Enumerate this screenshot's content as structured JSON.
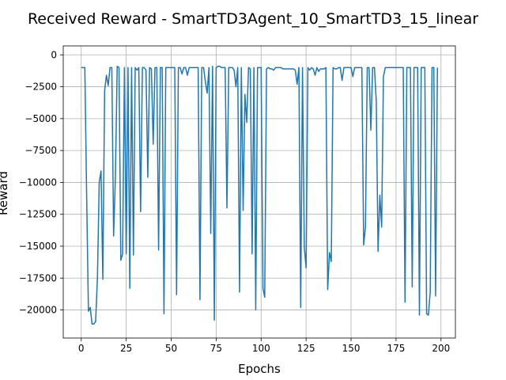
{
  "chart_data": {
    "type": "line",
    "title": "Received Reward - SmartTD3Agent_10_SmartTD3_15_linear",
    "xlabel": "Epochs",
    "ylabel": "Reward",
    "xlim": [
      -10,
      208
    ],
    "ylim": [
      -22200,
      700
    ],
    "grid": true,
    "legend": "none",
    "series_color": "#1f77b4",
    "x_ticks": [
      0,
      25,
      50,
      75,
      100,
      125,
      150,
      175,
      200
    ],
    "x_tick_labels": [
      "0",
      "25",
      "50",
      "75",
      "100",
      "125",
      "150",
      "175",
      "200"
    ],
    "y_ticks": [
      0,
      -2500,
      -5000,
      -7500,
      -10000,
      -12500,
      -15000,
      -17500,
      -20000
    ],
    "y_tick_labels": [
      "0",
      "−2500",
      "−5000",
      "−7500",
      "−10000",
      "−12500",
      "−15000",
      "−17500",
      "−20000"
    ],
    "series": [
      {
        "x": [
          0,
          1,
          2,
          3,
          4,
          5,
          6,
          7,
          8,
          9,
          10,
          11,
          12,
          13,
          14,
          15,
          16,
          17,
          18,
          19,
          20,
          21,
          22,
          23,
          24,
          25,
          26,
          27,
          28,
          29,
          30,
          31,
          32,
          33,
          34,
          35,
          36,
          37,
          38,
          39,
          40,
          41,
          42,
          43,
          44,
          45,
          46,
          47,
          48,
          49,
          50,
          51,
          52,
          53,
          54,
          55,
          56,
          57,
          58,
          59,
          60,
          61,
          62,
          63,
          64,
          65,
          66,
          67,
          68,
          69,
          70,
          71,
          72,
          73,
          74,
          75,
          76,
          77,
          78,
          79,
          80,
          81,
          82,
          83,
          84,
          85,
          86,
          87,
          88,
          89,
          90,
          91,
          92,
          93,
          94,
          95,
          96,
          97,
          98,
          99,
          100,
          101,
          102,
          103,
          104,
          105,
          106,
          107,
          108,
          109,
          110,
          111,
          112,
          113,
          114,
          115,
          116,
          117,
          118,
          119,
          120,
          121,
          122,
          123,
          124,
          125,
          126,
          127,
          128,
          129,
          130,
          131,
          132,
          133,
          134,
          135,
          136,
          137,
          138,
          139,
          140,
          141,
          142,
          143,
          144,
          145,
          146,
          147,
          148,
          149,
          150,
          151,
          152,
          153,
          154,
          155,
          156,
          157,
          158,
          159,
          160,
          161,
          162,
          163,
          164,
          165,
          166,
          167,
          168,
          169,
          170,
          171,
          172,
          173,
          174,
          175,
          176,
          177,
          178,
          179,
          180,
          181,
          182,
          183,
          184,
          185,
          186,
          187,
          188,
          189,
          190,
          191,
          192,
          193,
          194,
          195,
          196,
          197,
          198
        ],
        "values": [
          -1000,
          -1000,
          -1000,
          -11000,
          -20100,
          -19800,
          -21100,
          -21100,
          -20900,
          -17500,
          -10000,
          -9100,
          -17600,
          -2800,
          -1600,
          -2400,
          -1000,
          -1000,
          -14200,
          -9500,
          -900,
          -1000,
          -16100,
          -15600,
          -1000,
          -15600,
          -1000,
          -18300,
          -1000,
          -15700,
          -1000,
          -1200,
          -1000,
          -12300,
          -1000,
          -1000,
          -1200,
          -9600,
          -1000,
          -1100,
          -7000,
          -1000,
          -1000,
          -15300,
          -1000,
          -1000,
          -20300,
          -1000,
          -1000,
          -1000,
          -1000,
          -1000,
          -1000,
          -18800,
          -1000,
          -1000,
          -1500,
          -1000,
          -1000,
          -1600,
          -1000,
          -1000,
          -1000,
          -1000,
          -1000,
          -1000,
          -19200,
          -1000,
          -1000,
          -2100,
          -3000,
          -1000,
          -14000,
          -900,
          -20800,
          -1000,
          -900,
          -900,
          -1000,
          -1000,
          -1000,
          -12000,
          -1000,
          -1000,
          -1000,
          -1200,
          -2500,
          -1000,
          -18600,
          -1000,
          -12200,
          -3100,
          -5300,
          -1000,
          -1100,
          -15600,
          -1000,
          -20000,
          -1000,
          -1000,
          -1000,
          -18300,
          -19000,
          -1100,
          -1000,
          -1100,
          -1100,
          -1200,
          -1000,
          -1000,
          -1000,
          -1000,
          -1100,
          -1100,
          -1100,
          -1100,
          -1100,
          -1100,
          -1100,
          -1200,
          -2300,
          -1000,
          -19800,
          -1000,
          -15100,
          -16700,
          -1000,
          -1200,
          -1000,
          -1100,
          -1600,
          -1000,
          -1300,
          -1100,
          -1100,
          -1100,
          -1000,
          -18400,
          -15500,
          -16200,
          -1000,
          -1100,
          -1100,
          -1000,
          -1000,
          -2000,
          -1000,
          -1000,
          -1000,
          -1000,
          -1000,
          -1700,
          -1000,
          -1000,
          -1000,
          -1000,
          -1000,
          -14900,
          -13500,
          -1000,
          -1000,
          -5900,
          -1000,
          -1000,
          -3600,
          -15400,
          -11000,
          -13500,
          -1700,
          -1000,
          -1000,
          -1000,
          -1000,
          -1000,
          -1000,
          -1000,
          -1000,
          -1000,
          -1000,
          -1000,
          -19400,
          -1000,
          -1000,
          -1000,
          -18200,
          -1000,
          -1000,
          -1000,
          -20400,
          -1000,
          -1000,
          -1000,
          -20300,
          -20400,
          -18600,
          -1000,
          -1000,
          -18900,
          -1000
        ]
      }
    ]
  }
}
